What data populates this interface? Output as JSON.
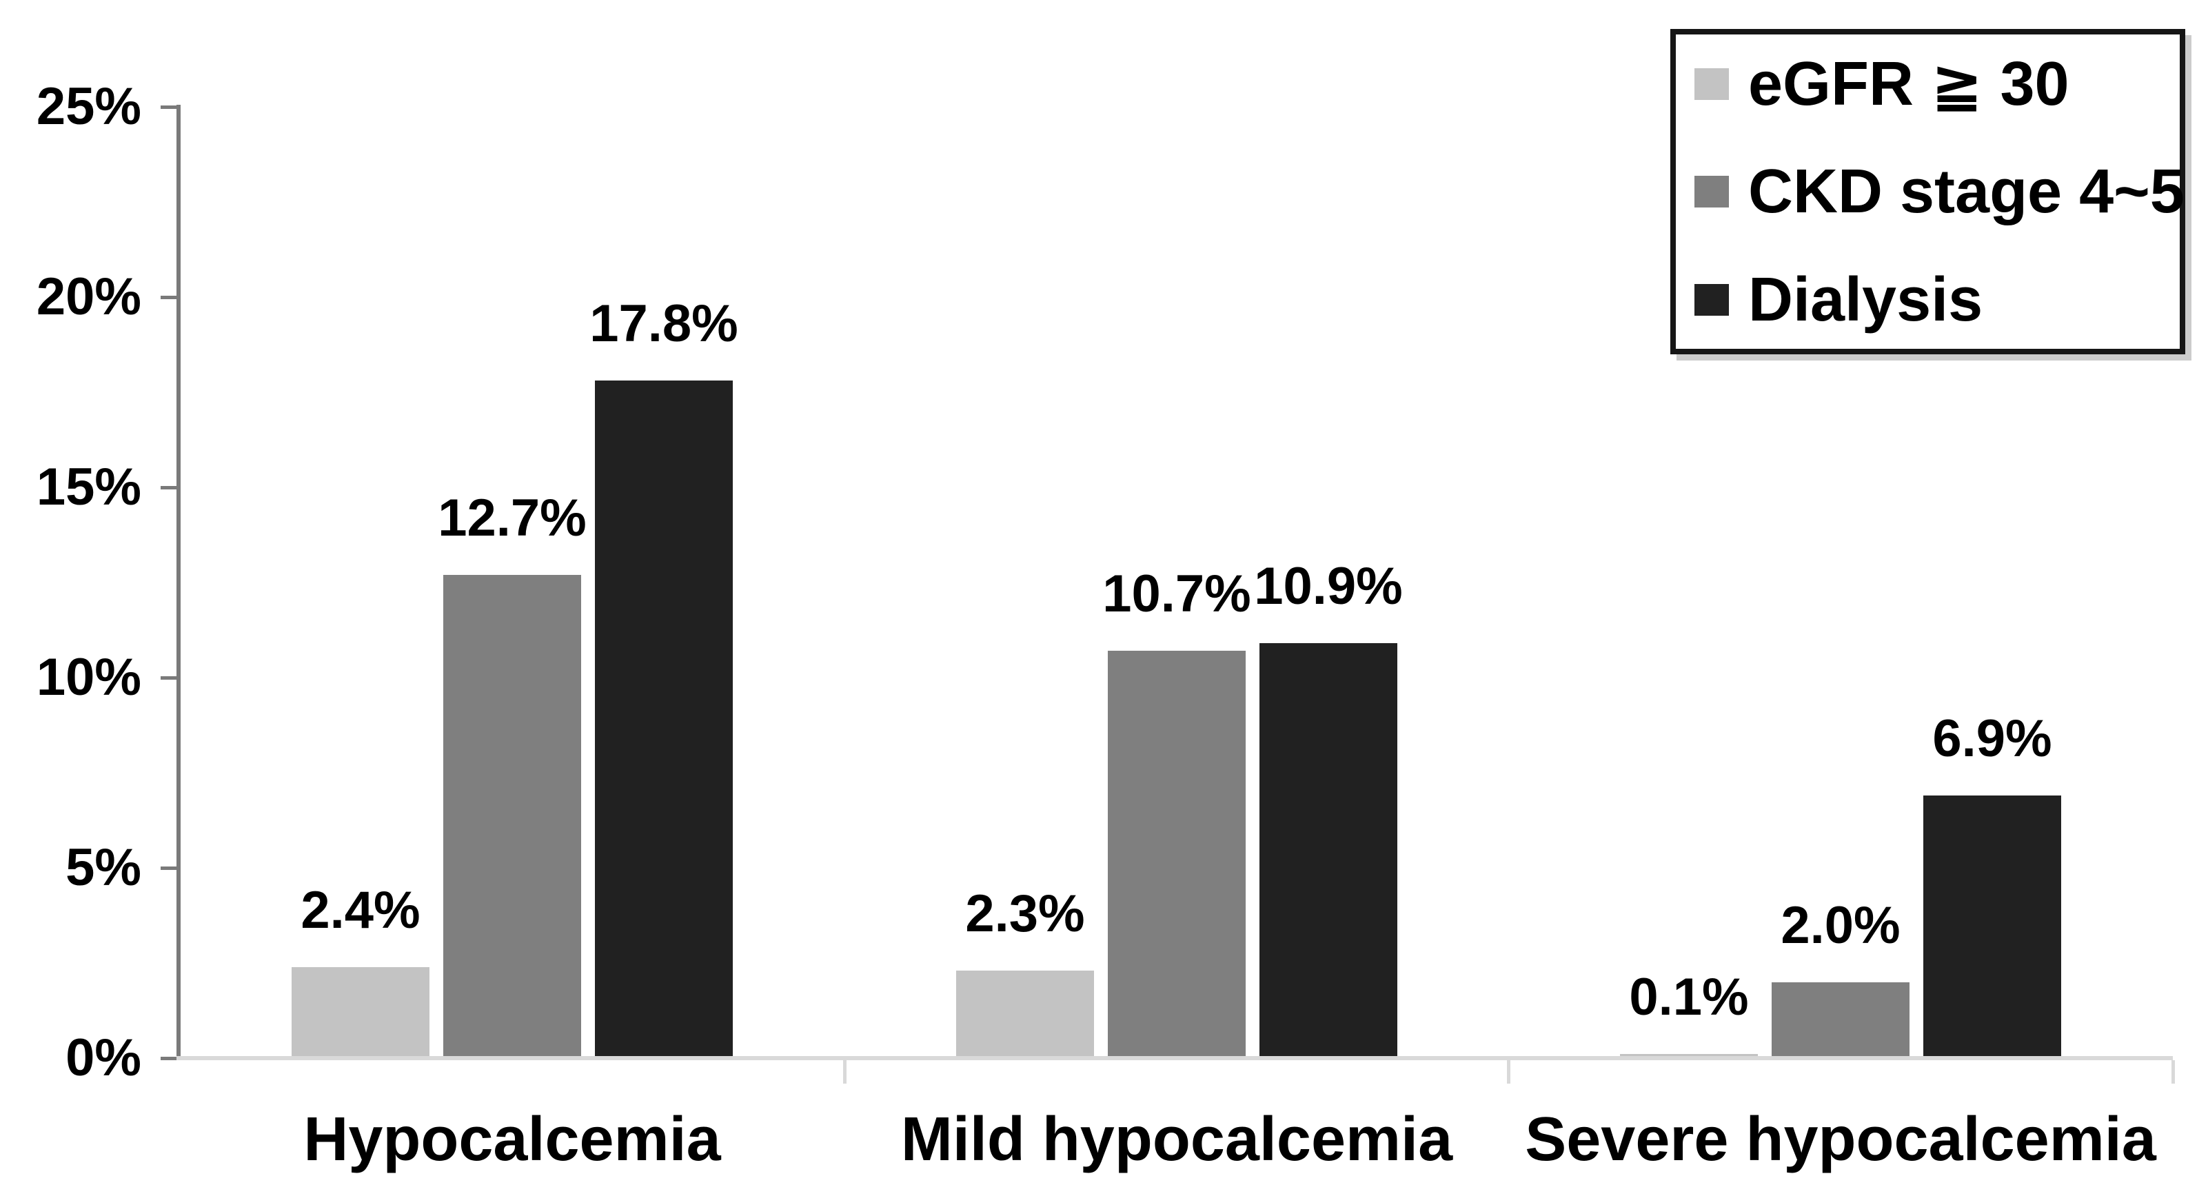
{
  "chart_data": {
    "type": "bar",
    "title": "",
    "xlabel": "",
    "ylabel": "",
    "categories": [
      "Hypocalcemia",
      "Mild hypocalcemia",
      "Severe hypocalcemia"
    ],
    "series": [
      {
        "name": "eGFR ≧ 30",
        "color": "#c3c3c3",
        "values": [
          2.4,
          2.3,
          0.1
        ],
        "labels": [
          "2.4%",
          "2.3%",
          "0.1%"
        ]
      },
      {
        "name": "CKD stage 4~5",
        "color": "#7f7f7f",
        "values": [
          12.7,
          10.7,
          2.0
        ],
        "labels": [
          "12.7%",
          "10.7%",
          "2.0%"
        ]
      },
      {
        "name": "Dialysis",
        "color": "#212121",
        "values": [
          17.8,
          10.9,
          6.9
        ],
        "labels": [
          "17.8%",
          "10.9%",
          "6.9%"
        ]
      }
    ],
    "ylim": [
      0,
      25
    ],
    "y_ticks": [
      {
        "value": 0,
        "label": "0%"
      },
      {
        "value": 5,
        "label": "5%"
      },
      {
        "value": 10,
        "label": "10%"
      },
      {
        "value": 15,
        "label": "15%"
      },
      {
        "value": 20,
        "label": "20%"
      },
      {
        "value": 25,
        "label": "25%"
      }
    ],
    "grid": false,
    "value_labels_shown": true,
    "legend_position": "top-right"
  },
  "colors": {
    "background": "#ffffff",
    "y_axis_line": "#7a7a7a",
    "y_tick": "#7a7a7a",
    "x_axis_line": "#d9d9d9",
    "x_tick": "#d9d9d9",
    "text": "#000000",
    "legend_border": "#161616"
  }
}
